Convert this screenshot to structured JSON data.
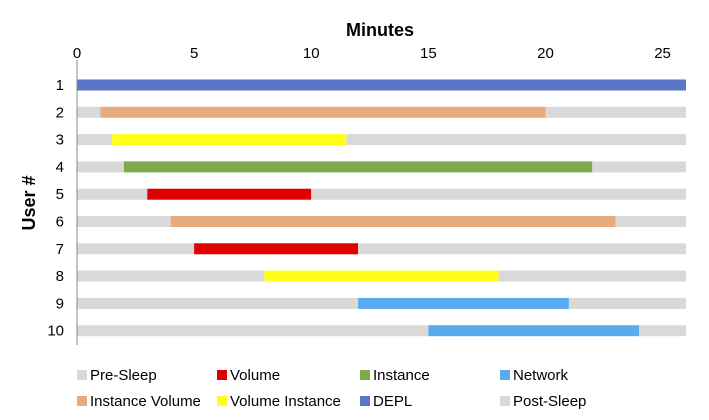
{
  "chart_data": {
    "type": "bar",
    "orientation": "horizontal-stacked",
    "title": "Minutes",
    "xlabel": "Minutes",
    "ylabel": "User #",
    "xlim": [
      0,
      26
    ],
    "x_ticks": [
      0,
      5,
      10,
      15,
      20,
      25
    ],
    "categories": [
      "1",
      "2",
      "3",
      "4",
      "5",
      "6",
      "7",
      "8",
      "9",
      "10"
    ],
    "series": [
      {
        "name": "Pre-Sleep",
        "color": "#d9d9d9",
        "values": [
          0,
          1,
          1.5,
          2,
          3,
          4,
          5,
          8,
          12,
          15
        ]
      },
      {
        "name": "Volume",
        "color": "#e00000",
        "values": [
          0,
          0,
          0,
          0,
          7,
          0,
          7,
          0,
          0,
          0
        ]
      },
      {
        "name": "Instance",
        "color": "#7daa4a",
        "values": [
          0,
          0,
          0,
          20,
          0,
          0,
          0,
          0,
          0,
          0
        ]
      },
      {
        "name": "Network",
        "color": "#5aabee",
        "values": [
          0,
          0,
          0,
          0,
          0,
          0,
          0,
          0,
          9,
          9
        ]
      },
      {
        "name": "Instance Volume",
        "color": "#e8ab7e",
        "values": [
          0,
          19,
          0,
          0,
          0,
          19,
          0,
          0,
          0,
          0
        ]
      },
      {
        "name": "Volume Instance",
        "color": "#ffff1a",
        "values": [
          0,
          0,
          10,
          0,
          0,
          0,
          0,
          10,
          0,
          0
        ]
      },
      {
        "name": "DEPL",
        "color": "#5a76c6",
        "values": [
          26,
          0,
          0,
          0,
          0,
          0,
          0,
          0,
          0,
          0
        ]
      },
      {
        "name": "Post-Sleep",
        "color": "#d9d9d9",
        "values": [
          0,
          6,
          14.5,
          4,
          16,
          3,
          14,
          8,
          5,
          2
        ]
      }
    ],
    "grid": false,
    "legend_position": "bottom"
  }
}
